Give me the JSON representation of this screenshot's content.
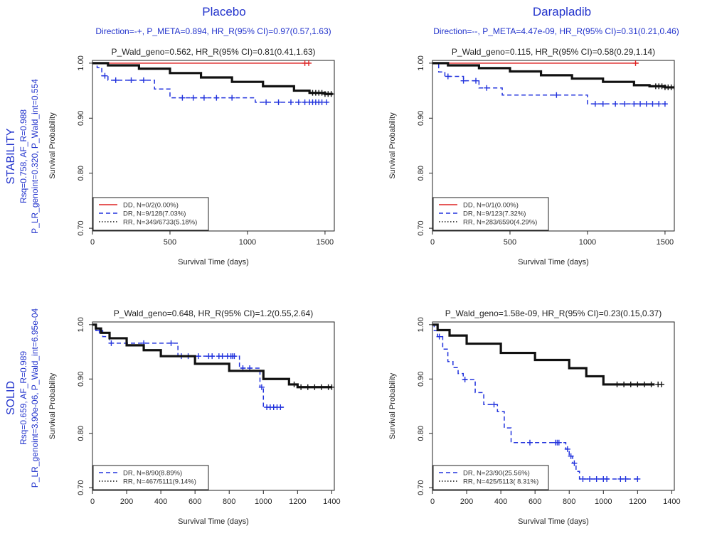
{
  "columns": {
    "placebo": {
      "title": "Placebo",
      "subtitle": "Direction=-+, P_META=0.894, HR_R(95% CI)=0.97(0.57,1.63)"
    },
    "darapladib": {
      "title": "Darapladib",
      "subtitle": "Direction=--, P_META=4.47e-09, HR_R(95% CI)=0.31(0.21,0.46)"
    }
  },
  "rows": {
    "stability": {
      "label": "STABILITY",
      "line1": "Rsq=0.758, AF_R=0.988",
      "line2": "P_LR_genoint=0.320, P_Wald_int=0.554"
    },
    "solid": {
      "label": "SOLID",
      "line1": "Rsq=0.659, AF_R=0.989",
      "line2": "P_LR_genoint=3.90e-06, P_Wald_int=6.95e-04"
    }
  },
  "colors": {
    "DD": "#dd2222",
    "DR": "#2233dd",
    "RR": "#111111",
    "header": "#2233cc"
  },
  "chart_data": [
    {
      "id": "stability-placebo",
      "type": "line",
      "title": "P_Wald_geno=0.562, HR_R(95% CI)=0.81(0.41,1.63)",
      "xlabel": "Survival Time (days)",
      "ylabel": "Survival Probability",
      "xlim": [
        0,
        1560
      ],
      "ylim": [
        0.695,
        1.005
      ],
      "xticks": [
        0,
        500,
        1000,
        1500
      ],
      "yticks": [
        0.7,
        0.8,
        0.9,
        1.0
      ],
      "legend": "bottom-left",
      "series": [
        {
          "key": "DD",
          "name": "DD, N=0/2(0.00%)",
          "style": "solid",
          "x": [
            0,
            1400
          ],
          "y": [
            1.0,
            1.0
          ],
          "censor_x": [
            1370,
            1395
          ]
        },
        {
          "key": "DR",
          "name": "DR, N=9/128(7.03%)",
          "style": "dashed",
          "x": [
            0,
            30,
            60,
            100,
            400,
            500,
            1000,
            1050,
            1530
          ],
          "y": [
            1.0,
            0.992,
            0.977,
            0.969,
            0.953,
            0.937,
            0.937,
            0.929,
            0.929
          ],
          "censor_x": [
            80,
            150,
            250,
            330,
            580,
            650,
            720,
            800,
            900,
            1120,
            1200,
            1280,
            1330,
            1370,
            1400,
            1420,
            1440,
            1460,
            1480,
            1510
          ]
        },
        {
          "key": "RR",
          "name": "RR, N=349/6733(5.18%)",
          "style": "dotted",
          "x": [
            0,
            100,
            300,
            500,
            700,
            900,
            1100,
            1300,
            1400,
            1500,
            1550
          ],
          "y": [
            1.0,
            0.996,
            0.99,
            0.982,
            0.974,
            0.966,
            0.958,
            0.95,
            0.946,
            0.944,
            0.944
          ],
          "censor_x": [
            1420,
            1440,
            1460,
            1480,
            1500,
            1520,
            1540
          ]
        }
      ]
    },
    {
      "id": "stability-darapladib",
      "type": "line",
      "title": "P_Wald_geno=0.115, HR_R(95% CI)=0.58(0.29,1.14)",
      "xlabel": "Survival Time (days)",
      "ylabel": "Survival Probability",
      "xlim": [
        0,
        1560
      ],
      "ylim": [
        0.695,
        1.005
      ],
      "xticks": [
        0,
        500,
        1000,
        1500
      ],
      "yticks": [
        0.7,
        0.8,
        0.9,
        1.0
      ],
      "legend": "bottom-left",
      "series": [
        {
          "key": "DD",
          "name": "DD, N=0/1(0.00%)",
          "style": "solid",
          "x": [
            0,
            1330
          ],
          "y": [
            1.0,
            1.0
          ],
          "censor_x": [
            1310
          ]
        },
        {
          "key": "DR",
          "name": "DR, N=9/123(7.32%)",
          "style": "dashed",
          "x": [
            0,
            40,
            80,
            200,
            300,
            450,
            900,
            1000,
            1520
          ],
          "y": [
            1.0,
            0.984,
            0.976,
            0.968,
            0.955,
            0.942,
            0.942,
            0.926,
            0.926
          ],
          "censor_x": [
            100,
            200,
            280,
            350,
            800,
            1050,
            1100,
            1180,
            1240,
            1300,
            1340,
            1380,
            1420,
            1460,
            1500
          ]
        },
        {
          "key": "RR",
          "name": "RR, N=283/6590(4.29%)",
          "style": "dotted",
          "x": [
            0,
            100,
            300,
            500,
            700,
            900,
            1100,
            1300,
            1400,
            1500,
            1560
          ],
          "y": [
            1.0,
            0.996,
            0.991,
            0.985,
            0.978,
            0.972,
            0.966,
            0.96,
            0.958,
            0.956,
            0.956
          ],
          "censor_x": [
            1440,
            1460,
            1480,
            1500,
            1520,
            1540,
            1560
          ]
        }
      ]
    },
    {
      "id": "solid-placebo",
      "type": "line",
      "title": "P_Wald_geno=0.648, HR_R(95% CI)=1.2(0.55,2.64)",
      "xlabel": "Survival Time (days)",
      "ylabel": "Survival Probability",
      "xlim": [
        0,
        1415
      ],
      "ylim": [
        0.695,
        1.005
      ],
      "xticks": [
        0,
        200,
        400,
        600,
        800,
        1000,
        1200,
        1400
      ],
      "yticks": [
        0.7,
        0.8,
        0.9,
        1.0
      ],
      "legend": "bottom-left",
      "series": [
        {
          "key": "DR",
          "name": "DR, N=8/90(8.89%)",
          "style": "dashed",
          "x": [
            0,
            20,
            60,
            100,
            480,
            500,
            840,
            860,
            960,
            980,
            1000,
            1120
          ],
          "y": [
            1.0,
            0.989,
            0.978,
            0.966,
            0.966,
            0.942,
            0.942,
            0.92,
            0.92,
            0.885,
            0.848,
            0.848
          ],
          "censor_x": [
            40,
            110,
            300,
            460,
            520,
            560,
            620,
            680,
            700,
            740,
            760,
            790,
            810,
            820,
            830,
            880,
            920,
            990,
            1020,
            1040,
            1060,
            1080,
            1100
          ]
        },
        {
          "key": "RR",
          "name": "RR, N=467/5111(9.14%)",
          "style": "dotted",
          "x": [
            0,
            20,
            50,
            100,
            200,
            300,
            400,
            600,
            800,
            1000,
            1150,
            1200,
            1400
          ],
          "y": [
            1.0,
            0.993,
            0.985,
            0.975,
            0.962,
            0.953,
            0.942,
            0.928,
            0.915,
            0.9,
            0.89,
            0.885,
            0.885
          ],
          "censor_x": [
            1180,
            1220,
            1260,
            1300,
            1340,
            1380,
            1400
          ]
        }
      ]
    },
    {
      "id": "solid-darapladib",
      "type": "line",
      "title": "P_Wald_geno=1.58e-09, HR_R(95% CI)=0.23(0.15,0.37)",
      "xlabel": "Survival Time (days)",
      "ylabel": "Survival Probability",
      "xlim": [
        0,
        1415
      ],
      "ylim": [
        0.695,
        1.005
      ],
      "xticks": [
        0,
        200,
        400,
        600,
        800,
        1000,
        1200,
        1400
      ],
      "yticks": [
        0.7,
        0.8,
        0.9,
        1.0
      ],
      "legend": "bottom-left",
      "series": [
        {
          "key": "DR",
          "name": "DR, N=23/90(25.56%)",
          "style": "dashed",
          "x": [
            0,
            10,
            30,
            60,
            90,
            120,
            150,
            180,
            250,
            300,
            380,
            420,
            460,
            760,
            780,
            800,
            820,
            840,
            860,
            1200
          ],
          "y": [
            1.0,
            0.989,
            0.978,
            0.955,
            0.932,
            0.921,
            0.91,
            0.899,
            0.875,
            0.853,
            0.84,
            0.81,
            0.783,
            0.783,
            0.771,
            0.758,
            0.745,
            0.73,
            0.716,
            0.716
          ],
          "censor_x": [
            40,
            190,
            360,
            570,
            720,
            730,
            740,
            790,
            810,
            830,
            880,
            920,
            960,
            1000,
            1020,
            1100,
            1130,
            1200
          ]
        },
        {
          "key": "RR",
          "name": "RR, N=425/5113( 8.31%)",
          "style": "dotted",
          "x": [
            0,
            30,
            100,
            200,
            400,
            600,
            800,
            900,
            1000,
            1100,
            1300
          ],
          "y": [
            1.0,
            0.99,
            0.98,
            0.965,
            0.948,
            0.935,
            0.92,
            0.905,
            0.89,
            0.89,
            0.89
          ],
          "censor_x": [
            1080,
            1120,
            1160,
            1200,
            1240,
            1280,
            1320,
            1340
          ]
        }
      ]
    }
  ]
}
